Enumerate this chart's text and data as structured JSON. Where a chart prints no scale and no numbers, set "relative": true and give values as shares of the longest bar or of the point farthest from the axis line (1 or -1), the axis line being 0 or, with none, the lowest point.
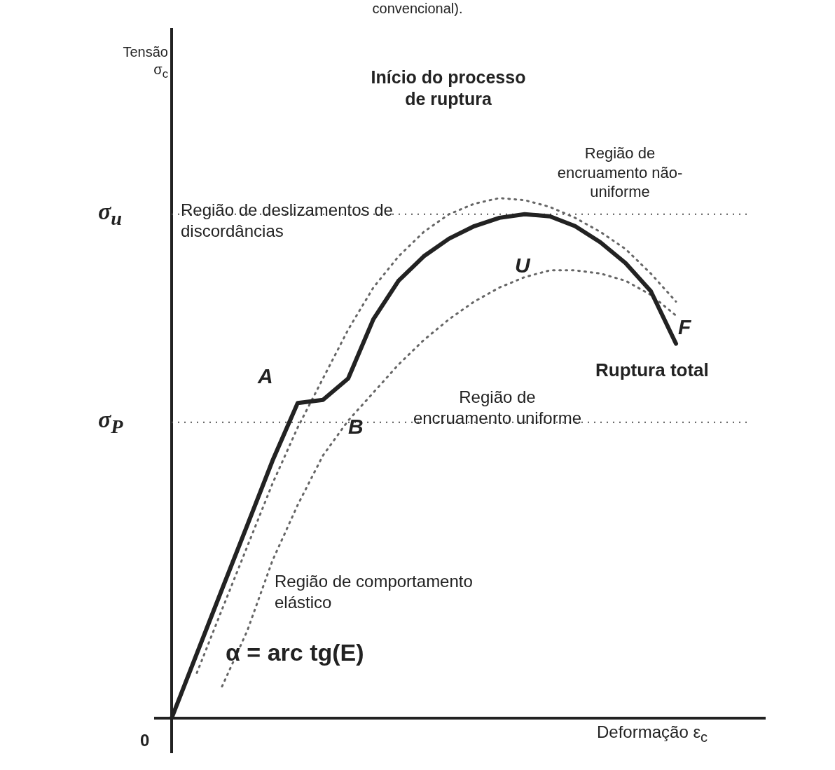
{
  "chart_data": {
    "type": "line",
    "title": "convencional).",
    "relative": true,
    "xlabel": "Deformação ε$_{c}$",
    "categories": [
      null,
      null,
      null,
      null,
      null,
      null,
      null,
      null,
      null,
      null,
      null,
      null,
      null,
      null,
      null,
      null,
      null,
      null,
      null,
      null,
      null,
      null,
      null,
      null
    ],
    "series": [
      {
        "color": "#222222",
        "line_style": "solid",
        "values": [
          0,
          0.124,
          0.248,
          0.371,
          0.495,
          0.606,
          0.612,
          0.653,
          0.767,
          0.841,
          0.888,
          0.922,
          0.946,
          0.962,
          0.969,
          0.965,
          0.946,
          0.915,
          0.875,
          0.821,
          0.72,
          null,
          null,
          null
        ]
      },
      {
        "color": "#666666",
        "line_style": "dotted",
        "values": [
          null,
          0.087,
          0.209,
          0.33,
          0.451,
          0.559,
          0.653,
          0.747,
          0.828,
          0.888,
          0.935,
          0.969,
          0.989,
          1,
          0.996,
          0.983,
          0.962,
          0.935,
          0.902,
          0.855,
          0.801,
          null,
          null,
          null
        ]
      },
      {
        "color": "#666666",
        "line_style": "dotted",
        "values": [
          null,
          null,
          0.061,
          0.168,
          0.303,
          0.41,
          0.505,
          0.572,
          0.626,
          0.68,
          0.727,
          0.767,
          0.801,
          0.828,
          0.848,
          0.861,
          0.861,
          0.855,
          0.841,
          0.814,
          0.774,
          null,
          null,
          null
        ]
      }
    ],
    "ref_lines": [
      {
        "axis": "y",
        "value": 0.969,
        "label": "σ$_{u}$",
        "line_style": "dotted"
      },
      {
        "axis": "y",
        "value": 0.569,
        "label": "σ$_{P}$",
        "line_style": "dotted"
      }
    ],
    "marker": "none",
    "legend": false,
    "annotations": [
      "Início do processo de ruptura",
      "Região de encruamento não-uniforme",
      "Região de deslizamentos de discordâncias",
      "A",
      "B",
      "U",
      "F",
      "Ruptura total",
      "Região de encruamento uniforme",
      "Região de comportamento elástico",
      "α = arc tg(E)",
      "0",
      "Tensão σ$_{c}$"
    ]
  }
}
